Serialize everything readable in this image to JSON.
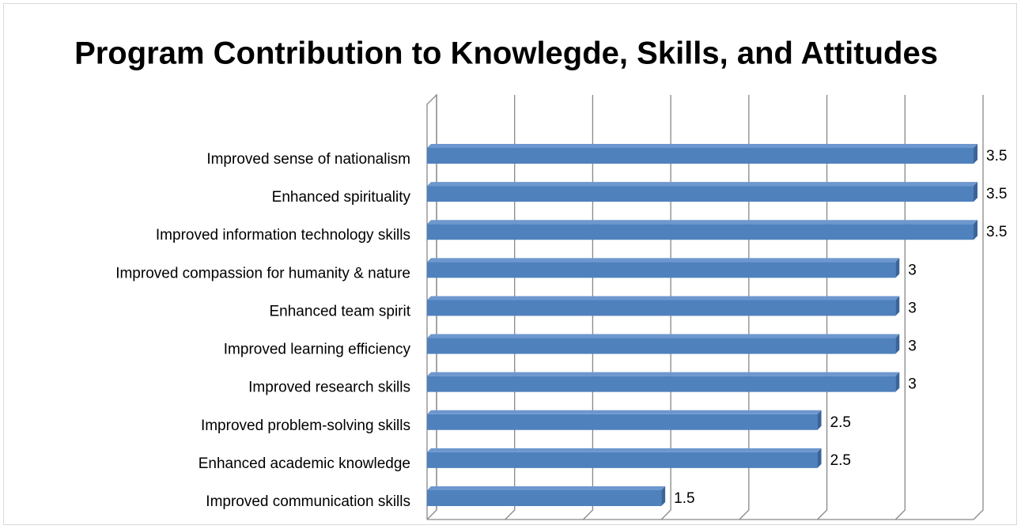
{
  "chart_data": {
    "type": "bar",
    "orientation": "horizontal",
    "title": "Program Contribution to Knowlegde, Skills, and Attitudes",
    "categories": [
      "Improved sense of nationalism",
      "Enhanced spirituality",
      "Improved information technology skills ",
      "Improved compassion for humanity & nature",
      "Enhanced team spirit ",
      "Improved learning efficiency",
      "Improved research skills",
      "Improved problem-solving skills",
      "Enhanced academic knowledge",
      "Improved communication skills"
    ],
    "values": [
      3.5,
      3.5,
      3.5,
      3,
      3,
      3,
      3,
      2.5,
      2.5,
      1.5
    ],
    "color": "#4f81bd",
    "xlim": [
      0,
      3.5
    ],
    "xticks": [
      0,
      0.5,
      1,
      1.5,
      2,
      2.5,
      3,
      3.5
    ],
    "grid": true
  }
}
